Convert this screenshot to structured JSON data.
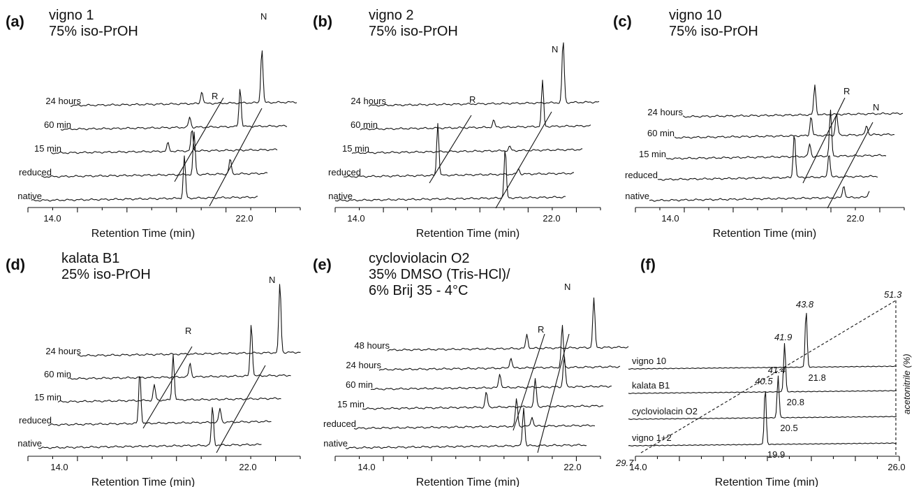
{
  "chart_data": [
    {
      "type": "line",
      "label": "(a)",
      "title": [
        "vigno 1",
        "75% iso-PrOH"
      ],
      "xlabel": "Retention Time (min)",
      "xlim": [
        14.0,
        22.0
      ],
      "xticks": [
        "14.0",
        "22.0"
      ],
      "traces": [
        "native",
        "reduced",
        "15 min",
        "60 min",
        "24 hours"
      ],
      "peak_labels": [
        "R",
        "N"
      ],
      "peaks": {
        "native": [
          {
            "x": 19.5,
            "h": 60
          }
        ],
        "reduced": [
          {
            "x": 19.5,
            "h": 60
          },
          {
            "x": 21.0,
            "h": 22
          }
        ],
        "15 min": [
          {
            "x": 19.0,
            "h": 30
          },
          {
            "x": 18.0,
            "h": 12
          }
        ],
        "60 min": [
          {
            "x": 20.6,
            "h": 55
          },
          {
            "x": 18.5,
            "h": 15
          }
        ],
        "24 hours": [
          {
            "x": 21.1,
            "h": 78
          },
          {
            "x": 18.6,
            "h": 18
          }
        ]
      }
    },
    {
      "type": "line",
      "label": "(b)",
      "title": [
        "vigno 2",
        "75% iso-PrOH"
      ],
      "xlabel": "Retention Time (min)",
      "xlim": [
        14.0,
        22.0
      ],
      "xticks": [
        "14.0",
        "22.0"
      ],
      "traces": [
        "native",
        "reduced",
        "15 min",
        "60 min",
        "24 hours"
      ],
      "peak_labels": [
        "R",
        "N"
      ],
      "peaks": {
        "native": [
          {
            "x": 20.1,
            "h": 70
          }
        ],
        "reduced": [
          {
            "x": 17.0,
            "h": 75
          },
          {
            "x": 20.3,
            "h": 8
          }
        ],
        "15 min": [
          {
            "x": 19.6,
            "h": 6
          }
        ],
        "60 min": [
          {
            "x": 20.6,
            "h": 65
          },
          {
            "x": 18.6,
            "h": 10
          }
        ],
        "24 hours": [
          {
            "x": 21.1,
            "h": 90
          }
        ]
      }
    },
    {
      "type": "line",
      "label": "(c)",
      "title": [
        "vigno 10",
        "75% iso-PrOH"
      ],
      "xlabel": "Retention Time (min)",
      "xlim": [
        14.0,
        22.0
      ],
      "xticks": [
        "14.0",
        "22.0"
      ],
      "traces": [
        "native",
        "reduced",
        "15 min",
        "60 min",
        "24 hours"
      ],
      "peak_labels": [
        "R",
        "N"
      ],
      "peaks": {
        "native": [
          {
            "x": 21.5,
            "h": 18
          },
          {
            "x": 22.6,
            "h": 10
          }
        ],
        "reduced": [
          {
            "x": 19.0,
            "h": 65
          },
          {
            "x": 20.5,
            "h": 35
          }
        ],
        "15 min": [
          {
            "x": 20.2,
            "h": 65
          },
          {
            "x": 19.3,
            "h": 18
          }
        ],
        "60 min": [
          {
            "x": 20.1,
            "h": 32
          },
          {
            "x": 19.0,
            "h": 28
          },
          {
            "x": 21.4,
            "h": 14
          }
        ],
        "24 hours": [
          {
            "x": 18.8,
            "h": 42
          },
          {
            "x": 23.0,
            "h": 20
          }
        ]
      }
    },
    {
      "type": "line",
      "label": "(d)",
      "title": [
        "kalata B1",
        "25% iso-PrOH"
      ],
      "xlabel": "Retention Time (min)",
      "xlim": [
        14.0,
        22.0
      ],
      "xticks": [
        "14.0",
        "22.0"
      ],
      "traces": [
        "native",
        "reduced",
        "15 min",
        "60 min",
        "24 hours"
      ],
      "peak_labels": [
        "R",
        "N"
      ],
      "peaks": {
        "native": [
          {
            "x": 20.5,
            "h": 55
          }
        ],
        "reduced": [
          {
            "x": 17.0,
            "h": 75
          },
          {
            "x": 20.4,
            "h": 20
          }
        ],
        "15 min": [
          {
            "x": 18.0,
            "h": 65
          },
          {
            "x": 17.2,
            "h": 22
          }
        ],
        "60 min": [
          {
            "x": 20.9,
            "h": 75
          },
          {
            "x": 18.3,
            "h": 20
          }
        ],
        "24 hours": [
          {
            "x": 21.7,
            "h": 100
          }
        ]
      }
    },
    {
      "type": "line",
      "label": "(e)",
      "title": [
        "cycloviolacin O2",
        "35% DMSO (Tris-HCl)/",
        "6% Brij 35 - 4°C"
      ],
      "xlabel": "Retention Time (min)",
      "xlim": [
        14.0,
        22.0
      ],
      "xticks": [
        "14.0",
        "22.0"
      ],
      "traces": [
        "native",
        "reduced",
        "15 min",
        "60 min",
        "24 hours",
        "48 hours"
      ],
      "peak_labels": [
        "R",
        "N"
      ],
      "peaks": {
        "native": [
          {
            "x": 20.1,
            "h": 55
          }
        ],
        "reduced": [
          {
            "x": 19.5,
            "h": 40
          },
          {
            "x": 20.1,
            "h": 14
          }
        ],
        "15 min": [
          {
            "x": 19.9,
            "h": 40
          },
          {
            "x": 18.0,
            "h": 22
          }
        ],
        "60 min": [
          {
            "x": 20.7,
            "h": 45
          },
          {
            "x": 18.2,
            "h": 20
          }
        ],
        "24 hours": [
          {
            "x": 20.3,
            "h": 60
          },
          {
            "x": 18.3,
            "h": 15
          }
        ],
        "48 hours": [
          {
            "x": 21.2,
            "h": 70
          },
          {
            "x": 18.6,
            "h": 20
          }
        ]
      }
    },
    {
      "type": "line",
      "label": "(f)",
      "xlabel": "Retention Time (min)",
      "xlim": [
        14.0,
        26.0
      ],
      "xticks": [
        "14.0",
        "26.0"
      ],
      "traces": [
        "vigno 1+2",
        "cycloviolacin O2",
        "kalata B1",
        "vigno 10"
      ],
      "retention_times": [
        "19.9",
        "20.5",
        "20.8",
        "21.8"
      ],
      "acetonitrile_labels": [
        "40.5",
        "41.4",
        "41.9",
        "43.8"
      ],
      "acetonitrile_range": [
        "29.7",
        "51.3"
      ],
      "ylabel_right": "acetonitrile (%)"
    }
  ]
}
